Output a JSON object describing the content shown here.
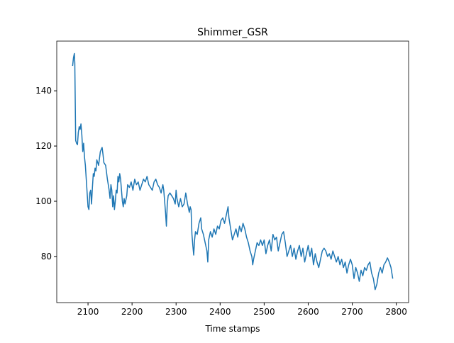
{
  "chart_data": {
    "type": "line",
    "title": "Shimmer_GSR",
    "xlabel": "Time stamps",
    "xlim": [
      2029,
      2828
    ],
    "ylim": [
      63.3,
      158.0
    ],
    "xticks": [
      2100,
      2200,
      2300,
      2400,
      2500,
      2600,
      2700,
      2800
    ],
    "yticks": [
      80,
      100,
      120,
      140
    ],
    "series": [
      {
        "color": "#1f77b4",
        "x": [
          2065,
          2067,
          2069,
          2070,
          2072,
          2074,
          2076,
          2078,
          2080,
          2082,
          2084,
          2086,
          2088,
          2090,
          2092,
          2094,
          2096,
          2098,
          2100,
          2102,
          2104,
          2106,
          2108,
          2110,
          2112,
          2114,
          2116,
          2118,
          2120,
          2124,
          2128,
          2132,
          2134,
          2136,
          2140,
          2144,
          2148,
          2150,
          2152,
          2154,
          2156,
          2158,
          2160,
          2162,
          2164,
          2166,
          2168,
          2170,
          2172,
          2174,
          2176,
          2178,
          2180,
          2182,
          2184,
          2188,
          2190,
          2194,
          2198,
          2202,
          2206,
          2210,
          2214,
          2218,
          2222,
          2226,
          2230,
          2234,
          2238,
          2242,
          2246,
          2250,
          2254,
          2258,
          2262,
          2266,
          2270,
          2272,
          2274,
          2276,
          2278,
          2280,
          2282,
          2286,
          2290,
          2294,
          2298,
          2300,
          2302,
          2306,
          2310,
          2314,
          2318,
          2322,
          2326,
          2330,
          2332,
          2334,
          2336,
          2338,
          2340,
          2342,
          2344,
          2348,
          2352,
          2356,
          2358,
          2362,
          2366,
          2370,
          2372,
          2374,
          2378,
          2382,
          2386,
          2390,
          2394,
          2398,
          2402,
          2406,
          2410,
          2414,
          2418,
          2420,
          2424,
          2428,
          2432,
          2436,
          2440,
          2444,
          2448,
          2452,
          2456,
          2460,
          2464,
          2468,
          2472,
          2474,
          2476,
          2480,
          2484,
          2488,
          2492,
          2496,
          2500,
          2504,
          2508,
          2512,
          2516,
          2520,
          2524,
          2528,
          2532,
          2536,
          2540,
          2544,
          2548,
          2552,
          2556,
          2560,
          2564,
          2568,
          2572,
          2576,
          2580,
          2584,
          2588,
          2592,
          2596,
          2600,
          2604,
          2608,
          2612,
          2616,
          2620,
          2624,
          2628,
          2632,
          2636,
          2640,
          2644,
          2648,
          2652,
          2656,
          2660,
          2664,
          2668,
          2672,
          2676,
          2680,
          2684,
          2688,
          2692,
          2696,
          2700,
          2704,
          2708,
          2712,
          2716,
          2720,
          2724,
          2728,
          2732,
          2736,
          2740,
          2744,
          2748,
          2752,
          2756,
          2760,
          2764,
          2768,
          2772,
          2776,
          2780,
          2784,
          2788,
          2790,
          2792
        ],
        "values": [
          149,
          152,
          153.5,
          150,
          122,
          121,
          120.5,
          125,
          127,
          126,
          128,
          124,
          118,
          121,
          116,
          113,
          108,
          103,
          98,
          97,
          103,
          104,
          99,
          105,
          110,
          109,
          112,
          111,
          115,
          113,
          118,
          119.5,
          117,
          114,
          113,
          108,
          104,
          101,
          106,
          104,
          98,
          102,
          97,
          100,
          104,
          103,
          109,
          107,
          110,
          108,
          104,
          100,
          98,
          101,
          99,
          102,
          106,
          105,
          107,
          104,
          108,
          106,
          107,
          104,
          106,
          108,
          107,
          109,
          106,
          105,
          104,
          107,
          108,
          106,
          105,
          103,
          106,
          104,
          100,
          96,
          91,
          99,
          102,
          103,
          102,
          101,
          99,
          104,
          101,
          98,
          101,
          98,
          99,
          103,
          99,
          96,
          98,
          97,
          88,
          84,
          80.5,
          86,
          89,
          88,
          92,
          94,
          90,
          88,
          85,
          82,
          78,
          86,
          89,
          87,
          90,
          88,
          91,
          90,
          93,
          94,
          92,
          95,
          98,
          94,
          90,
          86,
          88,
          90,
          87,
          91,
          89,
          92,
          90,
          87,
          85,
          82,
          80,
          77,
          79,
          82,
          85,
          84,
          86,
          84,
          86,
          81,
          84,
          86,
          82,
          88,
          86,
          87,
          82,
          85,
          88,
          89,
          85,
          80,
          82,
          84,
          80,
          83,
          79,
          82,
          84,
          80,
          83,
          78,
          81,
          84,
          80,
          83,
          77,
          81,
          78,
          76,
          79,
          82,
          83,
          82,
          80,
          81,
          79,
          82,
          80,
          78,
          80,
          77,
          79,
          76,
          78,
          74,
          77,
          79,
          77,
          72,
          76,
          74,
          71,
          75,
          73,
          76,
          75,
          77,
          78,
          74,
          72,
          68,
          70,
          74,
          76,
          74,
          77,
          78,
          79.5,
          78,
          76,
          74,
          72
        ]
      }
    ]
  }
}
